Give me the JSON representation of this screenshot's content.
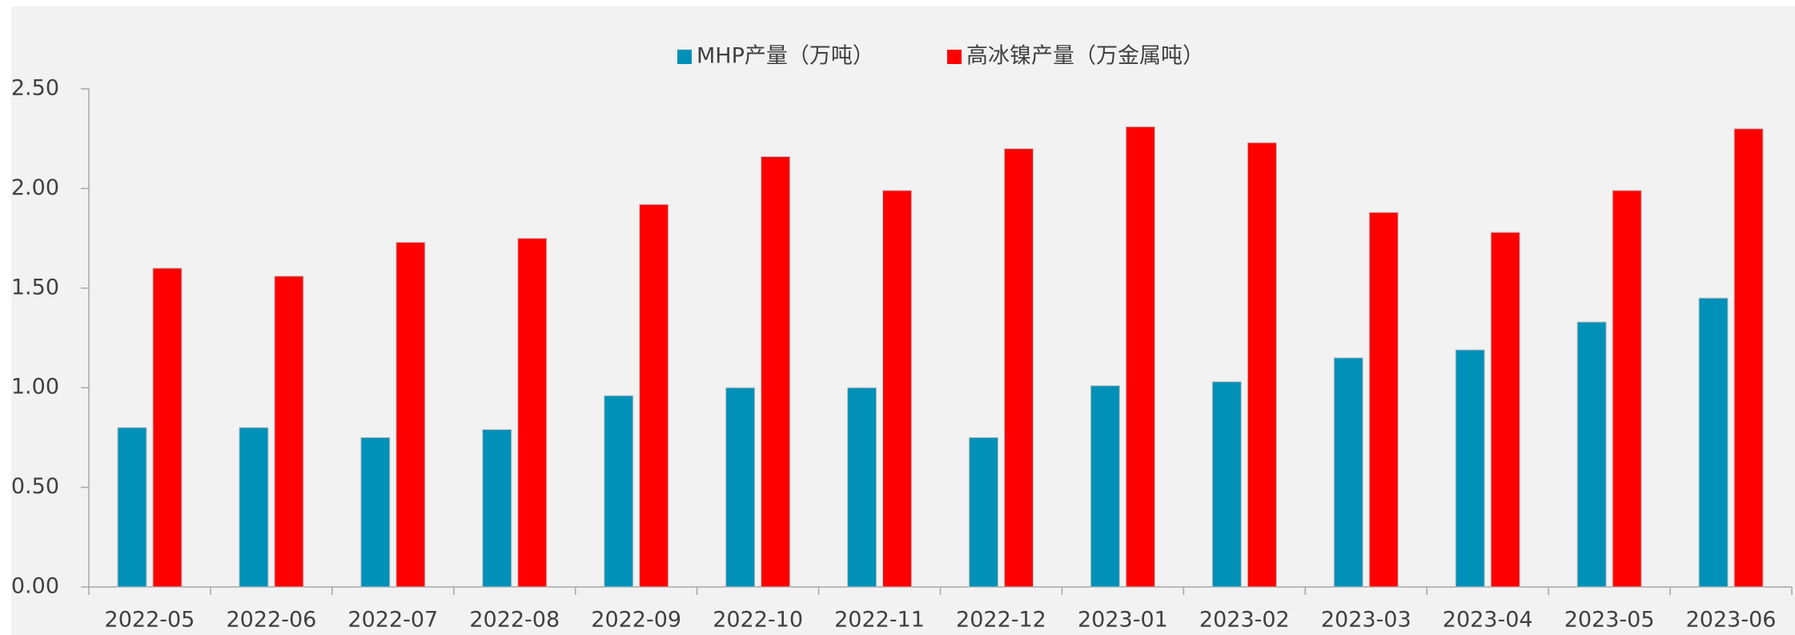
{
  "chart_data": {
    "type": "bar",
    "categories": [
      "2022-05",
      "2022-06",
      "2022-07",
      "2022-08",
      "2022-09",
      "2022-10",
      "2022-11",
      "2022-12",
      "2023-01",
      "2023-02",
      "2023-03",
      "2023-04",
      "2023-05",
      "2023-06"
    ],
    "series": [
      {
        "name": "MHP产量（万吨）",
        "color": "#0090b8",
        "values": [
          0.8,
          0.8,
          0.75,
          0.79,
          0.96,
          1.0,
          1.0,
          0.75,
          1.01,
          1.03,
          1.15,
          1.19,
          1.33,
          1.45
        ]
      },
      {
        "name": "高冰镍产量（万金属吨）",
        "color": "#ff0000",
        "values": [
          1.6,
          1.56,
          1.73,
          1.75,
          1.92,
          2.16,
          1.99,
          2.2,
          2.31,
          2.23,
          1.88,
          1.78,
          1.99,
          2.3
        ]
      }
    ],
    "ylim": [
      0,
      2.5
    ],
    "yticks": [
      {
        "value": 0,
        "label": "0.00"
      },
      {
        "value": 0.5,
        "label": "0.50"
      },
      {
        "value": 1,
        "label": "1.00"
      },
      {
        "value": 1.5,
        "label": "1.50"
      },
      {
        "value": 2,
        "label": "2.00"
      },
      {
        "value": 2.5,
        "label": "2.50"
      }
    ],
    "legend": "top"
  }
}
